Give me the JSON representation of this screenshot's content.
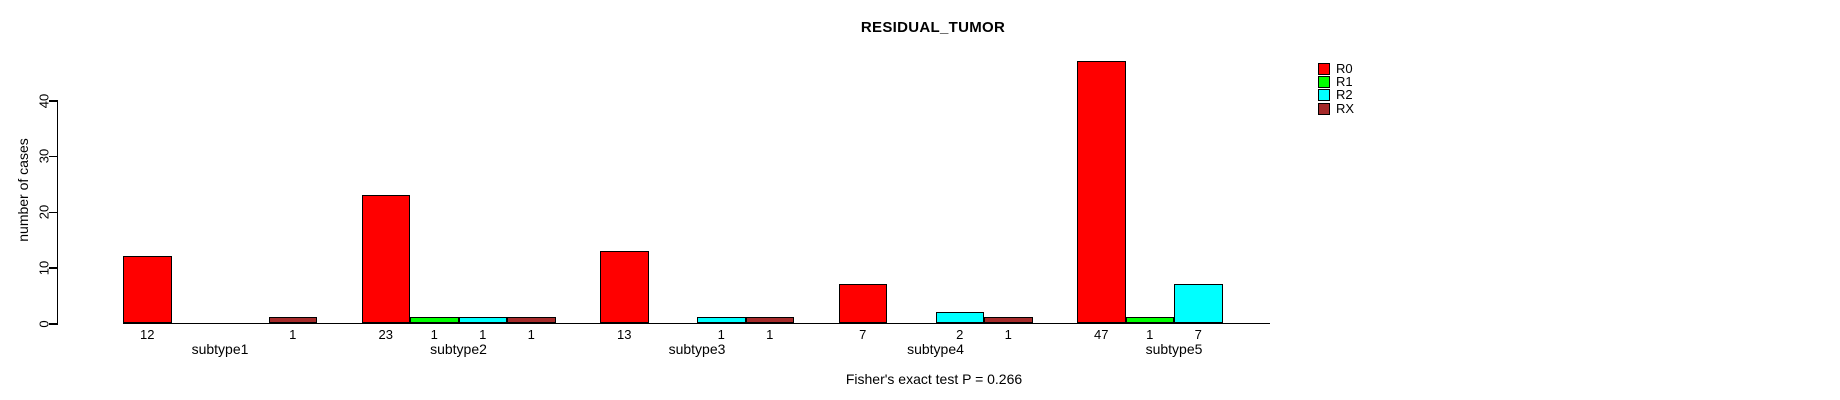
{
  "chart_data": {
    "type": "bar",
    "title": "RESIDUAL_TUMOR",
    "ylabel": "number of cases",
    "xlabel": "",
    "categories": [
      "subtype1",
      "subtype2",
      "subtype3",
      "subtype4",
      "subtype5"
    ],
    "series": [
      {
        "name": "R0",
        "color": "#ff0000",
        "values": [
          12,
          23,
          13,
          7,
          47
        ]
      },
      {
        "name": "R1",
        "color": "#00ff00",
        "values": [
          0,
          1,
          0,
          0,
          1
        ]
      },
      {
        "name": "R2",
        "color": "#00ffff",
        "values": [
          0,
          1,
          1,
          2,
          7
        ]
      },
      {
        "name": "RX",
        "color": "#a52a2a",
        "values": [
          1,
          1,
          1,
          1,
          0
        ]
      }
    ],
    "yticks": [
      0,
      10,
      20,
      30,
      40
    ],
    "ylim": [
      0,
      47
    ],
    "grid": false,
    "legend_position": "top-right",
    "bar_value_labels": "shown under each nonzero bar",
    "annotation": "Fisher's exact test P = 0.266"
  }
}
